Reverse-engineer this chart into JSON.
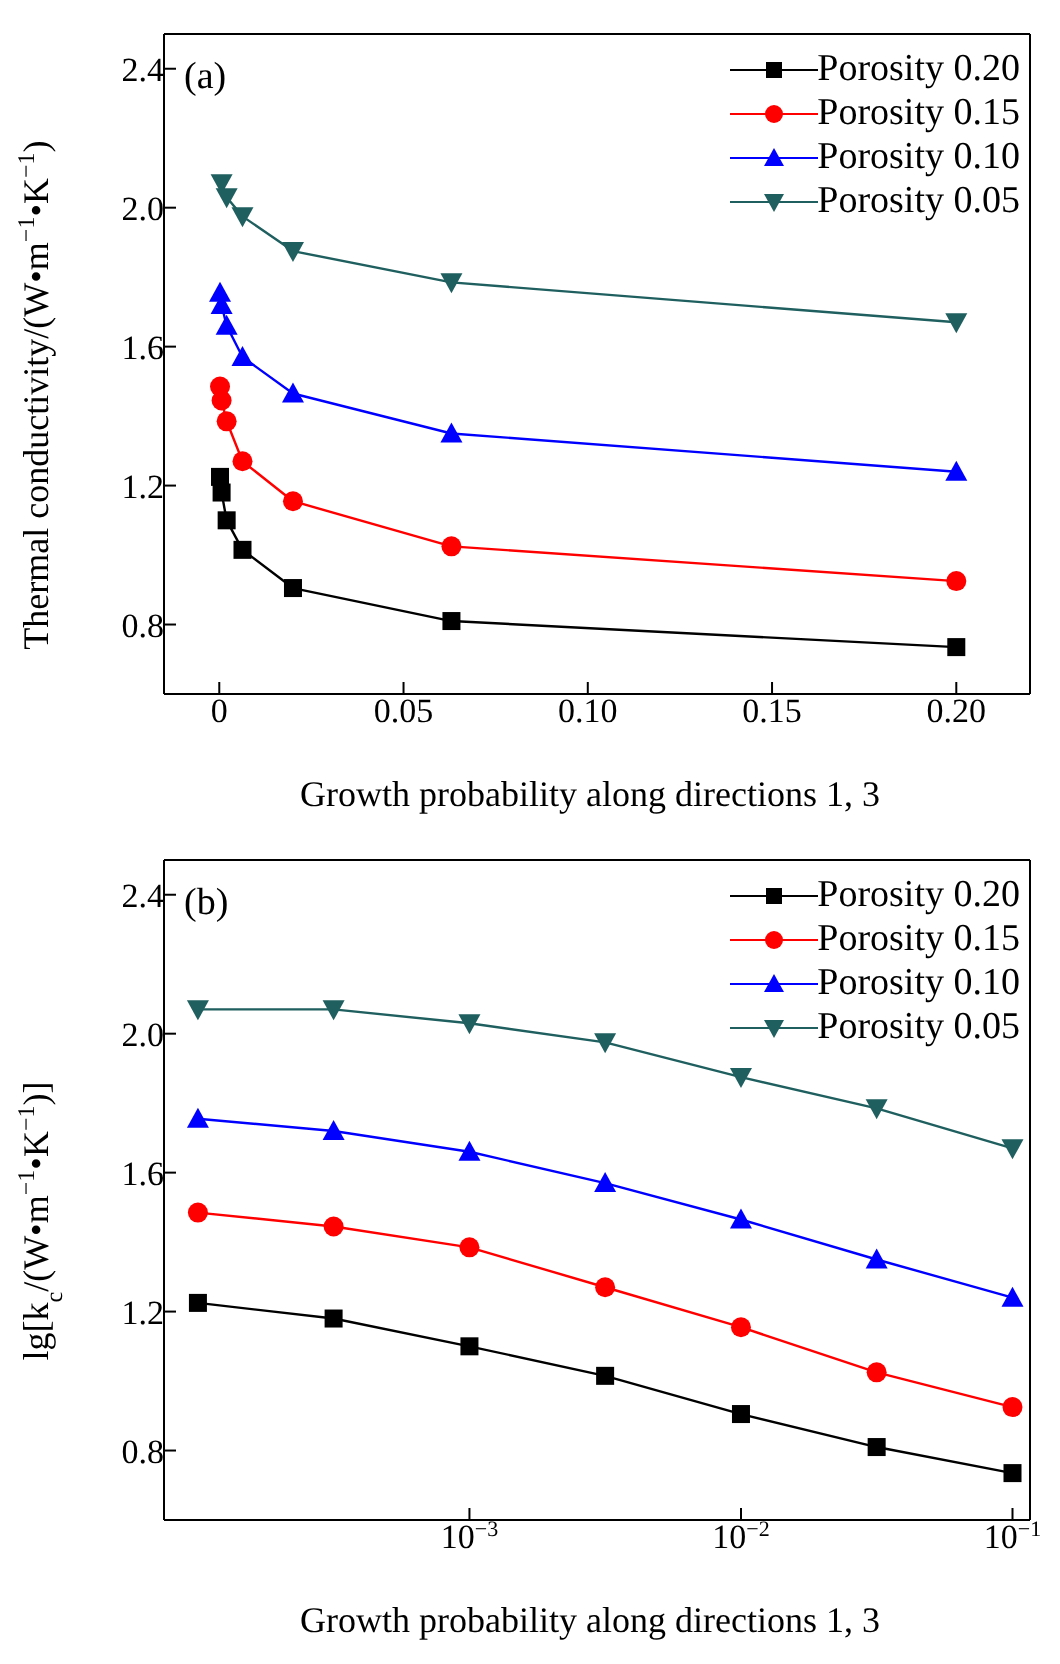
{
  "chart_data": [
    {
      "type": "line",
      "annotations": [
        "(a)"
      ],
      "xlabel": "Growth probability along directions 1, 3",
      "ylabel": "Thermal conductivity/(W•m$^{−1}$•K$^{−1}$)",
      "x": [
        0.0002,
        0.00063,
        0.002,
        0.0063,
        0.02,
        0.063,
        0.2
      ],
      "series": [
        {
          "name": "Porosity 0.20",
          "color": "#000000",
          "marker": "square",
          "values": [
            1.225,
            1.18,
            1.1,
            1.015,
            0.905,
            0.81,
            0.735
          ]
        },
        {
          "name": "Porosity 0.15",
          "color": "#ff0000",
          "marker": "circle",
          "values": [
            1.485,
            1.445,
            1.385,
            1.27,
            1.155,
            1.025,
            0.925
          ]
        },
        {
          "name": "Porosity 0.10",
          "color": "#0000ff",
          "marker": "triangle",
          "values": [
            1.755,
            1.72,
            1.66,
            1.57,
            1.465,
            1.35,
            1.24
          ]
        },
        {
          "name": "Porosity 0.05",
          "color": "#1f5f5f",
          "marker": "triangle-down",
          "values": [
            null,
            2.07,
            2.03,
            1.975,
            1.875,
            1.785,
            1.67
          ]
        }
      ],
      "xlim": [
        -0.015,
        0.22
      ],
      "xticks": [
        0,
        0.05,
        {
          "value": 0.1,
          "label": "0.10"
        },
        0.15,
        {
          "value": 0.2,
          "label": "0.20"
        }
      ],
      "ylim": [
        0.6,
        2.5
      ],
      "yticks": [
        0.8,
        1.2,
        1.6,
        {
          "value": 2,
          "label": "2.0"
        },
        2.4
      ],
      "grid": false,
      "legend": "top right",
      "line_style": "solid"
    },
    {
      "type": "line",
      "annotations": [
        "(b)"
      ],
      "xlabel": "Growth probability along directions 1, 3",
      "ylabel": "lg[k$_{c}$/(W•m$^{−1}$•K$^{−1}$)]",
      "x": [
        0.0001,
        0.000316,
        0.001,
        0.00316,
        0.01,
        0.0316,
        0.1
      ],
      "series": [
        {
          "name": "Porosity 0.20",
          "color": "#000000",
          "marker": "square",
          "values": [
            1.225,
            1.18,
            1.1,
            1.015,
            0.905,
            0.81,
            0.735
          ]
        },
        {
          "name": "Porosity 0.15",
          "color": "#ff0000",
          "marker": "circle",
          "values": [
            1.485,
            1.445,
            1.385,
            1.27,
            1.155,
            1.025,
            0.925
          ]
        },
        {
          "name": "Porosity 0.10",
          "color": "#0000ff",
          "marker": "triangle",
          "values": [
            1.755,
            1.72,
            1.66,
            1.57,
            1.465,
            1.35,
            1.24
          ]
        },
        {
          "name": "Porosity 0.05",
          "color": "#1f5f5f",
          "marker": "triangle-down",
          "values": [
            2.07,
            2.07,
            2.03,
            1.975,
            1.875,
            1.785,
            1.67
          ]
        }
      ],
      "log": "x",
      "xlim": [
        7.5e-05,
        0.116
      ],
      "xticks": [
        {
          "value": 0.001,
          "label": "10$^{−3}$"
        },
        {
          "value": 0.01,
          "label": "10$^{−2}$"
        },
        {
          "value": 0.1,
          "label": "10$^{−1}$"
        }
      ],
      "ylim": [
        0.6,
        2.5
      ],
      "yticks": [
        0.8,
        1.2,
        1.6,
        {
          "value": 2,
          "label": "2.0"
        },
        2.4
      ],
      "grid": false,
      "legend": "top right",
      "line_style": "solid"
    }
  ]
}
